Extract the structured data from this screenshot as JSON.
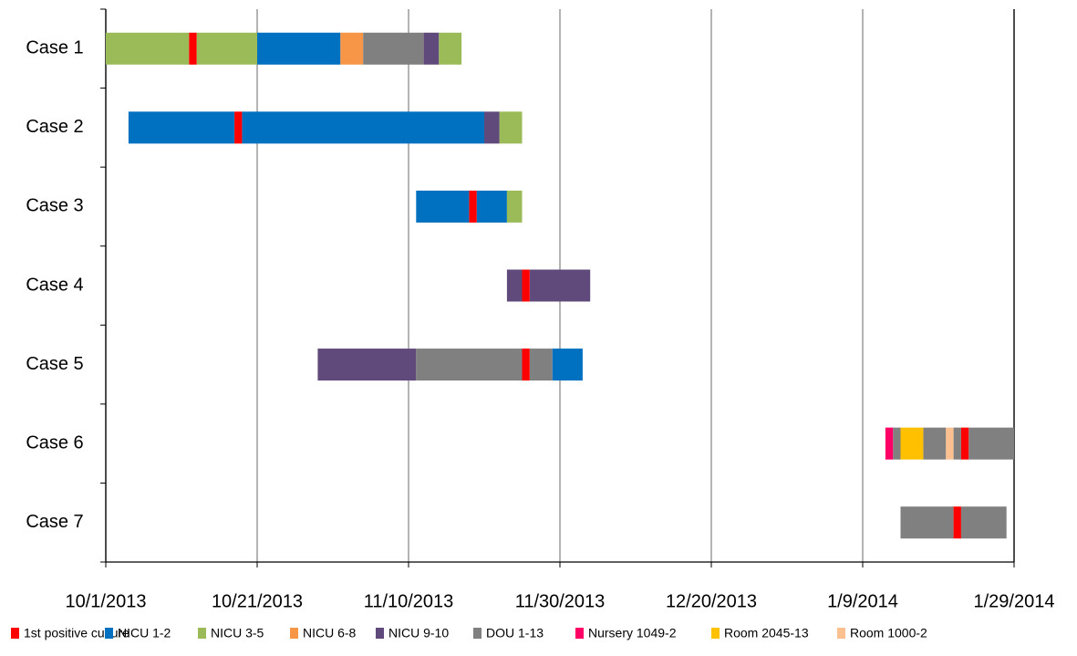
{
  "chart_data": {
    "type": "gantt",
    "categories": [
      "Case 1",
      "Case 2",
      "Case 3",
      "Case 4",
      "Case 5",
      "Case 6",
      "Case 7"
    ],
    "xlim": [
      0,
      120
    ],
    "xticks": [
      {
        "value": 0,
        "label": "10/1/2013"
      },
      {
        "value": 20,
        "label": "10/21/2013"
      },
      {
        "value": 40,
        "label": "11/10/2013"
      },
      {
        "value": 60,
        "label": "11/30/2013"
      },
      {
        "value": 80,
        "label": "12/20/2013"
      },
      {
        "value": 100,
        "label": "1/9/2014"
      },
      {
        "value": 120,
        "label": "1/29/2014"
      }
    ],
    "grid": true,
    "legend": "bottom",
    "series": [
      {
        "name": "1st positive culture",
        "color": "#ff0000",
        "values": [
          [
            [
              11,
              12
            ]
          ],
          [
            [
              17,
              18
            ]
          ],
          [
            [
              48,
              49
            ]
          ],
          [
            [
              55,
              56
            ]
          ],
          [
            [
              55,
              56
            ]
          ],
          [
            [
              113,
              114
            ]
          ],
          [
            [
              112,
              113
            ]
          ]
        ]
      },
      {
        "name": "NICU 1-2",
        "color": "#0070c0",
        "values": [
          [
            [
              20,
              31
            ]
          ],
          [
            [
              3,
              17
            ],
            [
              18,
              50
            ]
          ],
          [
            [
              41,
              48
            ],
            [
              49,
              53
            ]
          ],
          [],
          [
            [
              59,
              63
            ]
          ],
          [],
          []
        ]
      },
      {
        "name": "NICU 3-5",
        "color": "#9bbb59",
        "values": [
          [
            [
              0,
              11
            ],
            [
              12,
              20
            ],
            [
              44,
              47
            ]
          ],
          [
            [
              52,
              55
            ]
          ],
          [
            [
              53,
              55
            ]
          ],
          [],
          [],
          [],
          []
        ]
      },
      {
        "name": "NICU 6-8",
        "color": "#f79646",
        "values": [
          [
            [
              31,
              34
            ]
          ],
          [],
          [],
          [],
          [],
          [],
          []
        ]
      },
      {
        "name": "NICU 9-10",
        "color": "#604a7b",
        "values": [
          [
            [
              42,
              44
            ]
          ],
          [
            [
              50,
              52
            ]
          ],
          [],
          [
            [
              53,
              55
            ],
            [
              56,
              64
            ]
          ],
          [
            [
              28,
              41
            ]
          ],
          [],
          []
        ]
      },
      {
        "name": "DOU 1-13",
        "color": "#808080",
        "values": [
          [
            [
              34,
              42
            ]
          ],
          [],
          [],
          [],
          [
            [
              41,
              55
            ],
            [
              56,
              59
            ]
          ],
          [
            [
              104,
              105
            ],
            [
              108,
              111
            ],
            [
              112,
              113
            ],
            [
              114,
              120
            ]
          ],
          [
            [
              105,
              112
            ],
            [
              113,
              119
            ]
          ]
        ]
      },
      {
        "name": "Nursery 1049-2",
        "color": "#ff0066",
        "values": [
          [],
          [],
          [],
          [],
          [],
          [
            [
              103,
              104
            ]
          ],
          []
        ]
      },
      {
        "name": "Room 2045-13",
        "color": "#ffc000",
        "values": [
          [],
          [],
          [],
          [],
          [],
          [
            [
              105,
              108
            ]
          ],
          []
        ]
      },
      {
        "name": "Room 1000-2",
        "color": "#fac090",
        "values": [
          [],
          [],
          [],
          [],
          [],
          [
            [
              111,
              112
            ]
          ],
          []
        ]
      }
    ]
  }
}
